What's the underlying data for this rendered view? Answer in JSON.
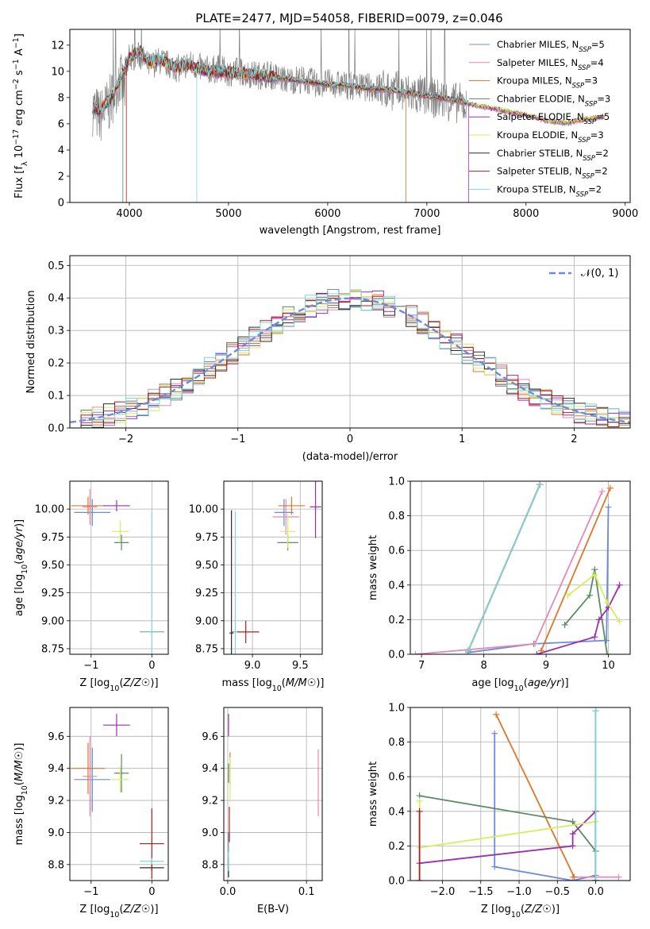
{
  "figure": {
    "title": "PLATE=2477, MJD=54058, FIBERID=0079, z=0.046"
  },
  "models": [
    {
      "name": "Chabrier MILES",
      "ssp": "5",
      "color": "#6b8cdb"
    },
    {
      "name": "Salpeter MILES",
      "ssp": "4",
      "color": "#e589b5"
    },
    {
      "name": "Kroupa MILES",
      "ssp": "3",
      "color": "#e0762a"
    },
    {
      "name": "Chabrier ELODIE",
      "ssp": "3",
      "color": "#5b8a63"
    },
    {
      "name": "Salpeter ELODIE",
      "ssp": "5",
      "color": "#9b2fae"
    },
    {
      "name": "Kroupa ELODIE",
      "ssp": "3",
      "color": "#d4ee5e"
    },
    {
      "name": "Chabrier STELIB",
      "ssp": "2",
      "color": "#2b2b2b"
    },
    {
      "name": "Salpeter STELIB",
      "ssp": "2",
      "color": "#b31b1b"
    },
    {
      "name": "Kroupa STELIB",
      "ssp": "2",
      "color": "#7fd8d8"
    }
  ],
  "chart_data": [
    {
      "id": "spectrum",
      "type": "line",
      "xlabel": "wavelength [Angstrom, rest frame]",
      "ylabel": "Flux [f_λ 10^-17 erg cm^-2 s^-1 A^-1]",
      "xlim": [
        3400,
        9050
      ],
      "ylim": [
        0,
        13.2
      ],
      "xticks": [
        4000,
        5000,
        6000,
        7000,
        8000,
        9000
      ],
      "yticks": [
        0,
        2,
        4,
        6,
        8,
        10,
        12
      ],
      "data_color": "#7f7f7f",
      "data_x": [
        3630,
        3700,
        3800,
        3900,
        3950,
        4000,
        4100,
        4200,
        4300,
        4400,
        4500,
        4600,
        4700,
        4800,
        4900,
        5000,
        5100,
        5200,
        5300,
        5400,
        5500,
        5600,
        5700,
        5800,
        5900,
        6000,
        6100,
        6200,
        6300,
        6400,
        6500,
        6600,
        6700,
        6800,
        6900,
        7000,
        7100,
        7200,
        7300,
        7400
      ],
      "data_y": [
        7.2,
        6.5,
        7.5,
        9.5,
        8.5,
        11.0,
        11.2,
        10.4,
        10.8,
        10.5,
        10.2,
        10.6,
        10.3,
        10.1,
        10.2,
        9.9,
        10.0,
        9.8,
        9.7,
        9.8,
        9.5,
        9.3,
        9.4,
        9.3,
        9.0,
        9.1,
        9.0,
        8.9,
        8.8,
        8.8,
        8.7,
        8.6,
        8.5,
        8.3,
        8.2,
        8.1,
        7.9,
        7.8,
        7.6,
        7.5
      ],
      "model_x": [
        3630,
        3700,
        3800,
        3900,
        4000,
        4100,
        4200,
        4300,
        4400,
        4500,
        4600,
        4700,
        4800,
        4900,
        5000,
        5200,
        5400,
        5600,
        5800,
        6000,
        6200,
        6400,
        6600,
        6800,
        7000,
        7200,
        7400,
        7600,
        7800,
        8000,
        8200,
        8400,
        8600,
        8800
      ],
      "model_y": [
        7.3,
        7.0,
        7.8,
        9.3,
        11.0,
        11.6,
        10.6,
        10.9,
        10.5,
        10.3,
        10.5,
        10.2,
        10.0,
        10.0,
        9.9,
        9.8,
        9.6,
        9.4,
        9.2,
        9.0,
        8.9,
        8.7,
        8.6,
        8.4,
        8.1,
        7.9,
        7.6,
        7.3,
        7.0,
        6.7,
        6.3,
        6.1,
        6.4,
        6.6
      ]
    },
    {
      "id": "residuals",
      "type": "bar",
      "xlabel": "(data-model)/error",
      "ylabel": "Normed distribution",
      "xlim": [
        -2.5,
        2.5
      ],
      "ylim": [
        0,
        0.53
      ],
      "xticks": [
        -2,
        -1,
        0,
        1,
        2
      ],
      "yticks": [
        0.0,
        0.1,
        0.2,
        0.3,
        0.4,
        0.5
      ],
      "bin_width": 0.1,
      "legend": "𝒩(0, 1)",
      "legend_position": "top-right",
      "normal_color": "#6b8cdb"
    },
    {
      "id": "age-Z",
      "type": "scatter",
      "xlabel": "Z [log10(Z/Z☉)]",
      "ylabel": "age  [log10(age/yr)]",
      "xlim": [
        -1.35,
        0.27
      ],
      "ylim": [
        8.7,
        10.25
      ],
      "xticks": [
        -1,
        0
      ],
      "yticks": [
        8.75,
        9.0,
        9.25,
        9.5,
        9.75,
        10.0
      ],
      "points": [
        {
          "model": 0,
          "x": -0.98,
          "y": 9.97,
          "xerr": 0.3,
          "yerr": 0.12
        },
        {
          "model": 1,
          "x": -1.02,
          "y": 10.02,
          "xerr": 0.12,
          "yerr": 0.16
        },
        {
          "model": 2,
          "x": -1.05,
          "y": 10.03,
          "xerr": 0.28,
          "yerr": 0.08
        },
        {
          "model": 3,
          "x": -0.5,
          "y": 9.7,
          "xerr": 0.12,
          "yerr": 0.07
        },
        {
          "model": 4,
          "x": -0.58,
          "y": 10.03,
          "xerr": 0.22,
          "yerr": 0.05
        },
        {
          "model": 5,
          "x": -0.52,
          "y": 9.8,
          "xerr": 0.14,
          "yerr": 0.1
        },
        {
          "model": 6,
          "x": 0.0,
          "y": 8.9,
          "xerr": 0.2,
          "yerr": 0.0
        },
        {
          "model": 7,
          "x": 0.0,
          "y": 8.9,
          "xerr": 0.2,
          "yerr": 0.0
        },
        {
          "model": 8,
          "x": 0.0,
          "y": 8.9,
          "xerr": 0.2,
          "yerr": 1.08
        }
      ]
    },
    {
      "id": "age-mass",
      "type": "scatter",
      "xlabel": "mass [log10(M/M☉)]",
      "ylabel": "",
      "xlim": [
        8.7,
        9.73
      ],
      "ylim": [
        8.7,
        10.25
      ],
      "xticks": [
        9.0,
        9.5
      ],
      "yticks": [
        8.75,
        9.0,
        9.25,
        9.5,
        9.75,
        10.0
      ],
      "points": [
        {
          "model": 0,
          "x": 9.33,
          "y": 9.97,
          "xerr": 0.1,
          "yerr": 0.12
        },
        {
          "model": 1,
          "x": 9.35,
          "y": 9.93,
          "xerr": 0.14,
          "yerr": 0.16
        },
        {
          "model": 2,
          "x": 9.41,
          "y": 10.03,
          "xerr": 0.14,
          "yerr": 0.08
        },
        {
          "model": 3,
          "x": 9.37,
          "y": 9.7,
          "xerr": 0.11,
          "yerr": 0.07
        },
        {
          "model": 4,
          "x": 9.66,
          "y": 10.02,
          "xerr": 0.06,
          "yerr": 0.28
        },
        {
          "model": 5,
          "x": 9.37,
          "y": 9.8,
          "xerr": 0.08,
          "yerr": 0.15
        },
        {
          "model": 6,
          "x": 8.78,
          "y": 8.89,
          "xerr": 0.02,
          "yerr": 1.1
        },
        {
          "model": 7,
          "x": 8.93,
          "y": 8.9,
          "xerr": 0.14,
          "yerr": 0.1
        },
        {
          "model": 8,
          "x": 8.82,
          "y": 8.9,
          "xerr": 0.02,
          "yerr": 1.08
        }
      ]
    },
    {
      "id": "weight-age",
      "type": "line",
      "xlabel": "age  [log10(age/yr)]",
      "ylabel": "mass weight",
      "xlim": [
        6.82,
        10.35
      ],
      "ylim": [
        0.0,
        1.0
      ],
      "xticks": [
        7,
        8,
        9,
        10
      ],
      "yticks": [
        0.0,
        0.2,
        0.4,
        0.6,
        0.8,
        1.0
      ],
      "series": [
        {
          "model": 0,
          "x": [
            7.75,
            8.8,
            9.97,
            10.0
          ],
          "y": [
            0.01,
            0.06,
            0.08,
            0.85
          ]
        },
        {
          "model": 1,
          "x": [
            6.9,
            8.82,
            9.9
          ],
          "y": [
            0.0,
            0.06,
            0.94
          ]
        },
        {
          "model": 2,
          "x": [
            8.92,
            10.03
          ],
          "y": [
            0.02,
            0.96
          ]
        },
        {
          "model": 3,
          "x": [
            9.3,
            9.7,
            9.78,
            9.98
          ],
          "y": [
            0.17,
            0.34,
            0.49,
            0.0
          ]
        },
        {
          "model": 4,
          "x": [
            8.85,
            9.78,
            9.85,
            10.0,
            10.18
          ],
          "y": [
            0.0,
            0.1,
            0.2,
            0.27,
            0.4
          ]
        },
        {
          "model": 5,
          "x": [
            9.35,
            9.78,
            9.98,
            10.18
          ],
          "y": [
            0.34,
            0.46,
            0.3,
            0.19
          ]
        },
        {
          "model": 6,
          "x": [
            7.75,
            8.9
          ],
          "y": [
            0.02,
            0.98
          ]
        },
        {
          "model": 7,
          "x": [
            7.75,
            8.9
          ],
          "y": [
            0.02,
            0.98
          ]
        },
        {
          "model": 8,
          "x": [
            7.75,
            8.9
          ],
          "y": [
            0.02,
            0.98
          ]
        }
      ]
    },
    {
      "id": "mass-Z",
      "type": "scatter",
      "xlabel": "Z [log10(Z/Z☉)]",
      "ylabel": "mass [log10(M/M☉)]",
      "xlim": [
        -1.35,
        0.27
      ],
      "ylim": [
        8.7,
        9.78
      ],
      "xticks": [
        -1,
        0
      ],
      "yticks": [
        8.8,
        9.0,
        9.2,
        9.4,
        9.6
      ],
      "points": [
        {
          "model": 0,
          "x": -0.98,
          "y": 9.33,
          "xerr": 0.3,
          "yerr": 0.2
        },
        {
          "model": 1,
          "x": -1.02,
          "y": 9.35,
          "xerr": 0.12,
          "yerr": 0.25
        },
        {
          "model": 2,
          "x": -1.05,
          "y": 9.4,
          "xerr": 0.28,
          "yerr": 0.16
        },
        {
          "model": 3,
          "x": -0.5,
          "y": 9.37,
          "xerr": 0.12,
          "yerr": 0.12
        },
        {
          "model": 4,
          "x": -0.58,
          "y": 9.67,
          "xerr": 0.22,
          "yerr": 0.07
        },
        {
          "model": 5,
          "x": -0.52,
          "y": 9.33,
          "xerr": 0.14,
          "yerr": 0.08
        },
        {
          "model": 6,
          "x": 0.0,
          "y": 8.78,
          "xerr": 0.2,
          "yerr": 0.02
        },
        {
          "model": 7,
          "x": 0.0,
          "y": 8.93,
          "xerr": 0.2,
          "yerr": 0.22
        },
        {
          "model": 8,
          "x": 0.0,
          "y": 8.82,
          "xerr": 0.2,
          "yerr": 0.02
        }
      ]
    },
    {
      "id": "mass-EBV",
      "type": "scatter",
      "xlabel": "E(B-V)",
      "ylabel": "",
      "xlim": [
        -0.005,
        0.12
      ],
      "ylim": [
        8.7,
        9.78
      ],
      "xticks": [
        0.0,
        0.1
      ],
      "yticks": [
        8.8,
        9.0,
        9.2,
        9.4,
        9.6
      ],
      "points": [
        {
          "model": 0,
          "x": 0.001,
          "y": 8.88,
          "xerr": 0.0,
          "yerr": 0.12
        },
        {
          "model": 1,
          "x": 0.115,
          "y": 9.31,
          "xerr": 0.0,
          "yerr": 0.21
        },
        {
          "model": 2,
          "x": 0.003,
          "y": 9.4,
          "xerr": 0.0,
          "yerr": 0.1
        },
        {
          "model": 3,
          "x": 0.001,
          "y": 9.37,
          "xerr": 0.0,
          "yerr": 0.06
        },
        {
          "model": 4,
          "x": 0.001,
          "y": 9.67,
          "xerr": 0.0,
          "yerr": 0.07
        },
        {
          "model": 5,
          "x": 0.003,
          "y": 9.33,
          "xerr": 0.0,
          "yerr": 0.14
        },
        {
          "model": 6,
          "x": 0.001,
          "y": 8.78,
          "xerr": 0.0,
          "yerr": 0.06
        },
        {
          "model": 7,
          "x": 0.002,
          "y": 9.05,
          "xerr": 0.0,
          "yerr": 0.11
        },
        {
          "model": 8,
          "x": 0.001,
          "y": 8.82,
          "xerr": 0.0,
          "yerr": 0.06
        }
      ]
    },
    {
      "id": "weight-Z",
      "type": "line",
      "xlabel": "Z [log10(Z/Z☉)]",
      "ylabel": "mass weight",
      "xlim": [
        -2.42,
        0.45
      ],
      "ylim": [
        0.0,
        1.0
      ],
      "xticks": [
        -2.0,
        -1.5,
        -1.0,
        -0.5,
        0.0
      ],
      "yticks": [
        0.0,
        0.2,
        0.4,
        0.6,
        0.8,
        1.0
      ],
      "series": [
        {
          "model": 0,
          "x": [
            -1.32,
            -1.32,
            -0.3,
            0.0,
            0.0
          ],
          "y": [
            0.85,
            0.08,
            0.0,
            0.03,
            0.0
          ]
        },
        {
          "model": 1,
          "x": [
            -0.3,
            0.3
          ],
          "y": [
            0.02,
            0.02
          ]
        },
        {
          "model": 2,
          "x": [
            -1.3,
            -0.28
          ],
          "y": [
            0.96,
            0.02
          ]
        },
        {
          "model": 3,
          "x": [
            -2.3,
            -0.3,
            0.0,
            0.0
          ],
          "y": [
            0.49,
            0.34,
            0.17,
            0.0
          ]
        },
        {
          "model": 4,
          "x": [
            -2.3,
            -0.3,
            -0.3,
            0.0,
            0.0
          ],
          "y": [
            0.1,
            0.2,
            0.27,
            0.4,
            0.0
          ]
        },
        {
          "model": 5,
          "x": [
            -2.3,
            -2.3,
            0.0
          ],
          "y": [
            0.46,
            0.19,
            0.34
          ]
        },
        {
          "model": 6,
          "x": [
            0.0,
            0.0
          ],
          "y": [
            0.98,
            0.0
          ]
        },
        {
          "model": 7,
          "x": [
            -2.3,
            -2.3
          ],
          "y": [
            0.4,
            0.0
          ]
        },
        {
          "model": 8,
          "x": [
            0.0,
            0.0
          ],
          "y": [
            0.98,
            0.0
          ]
        }
      ]
    }
  ]
}
